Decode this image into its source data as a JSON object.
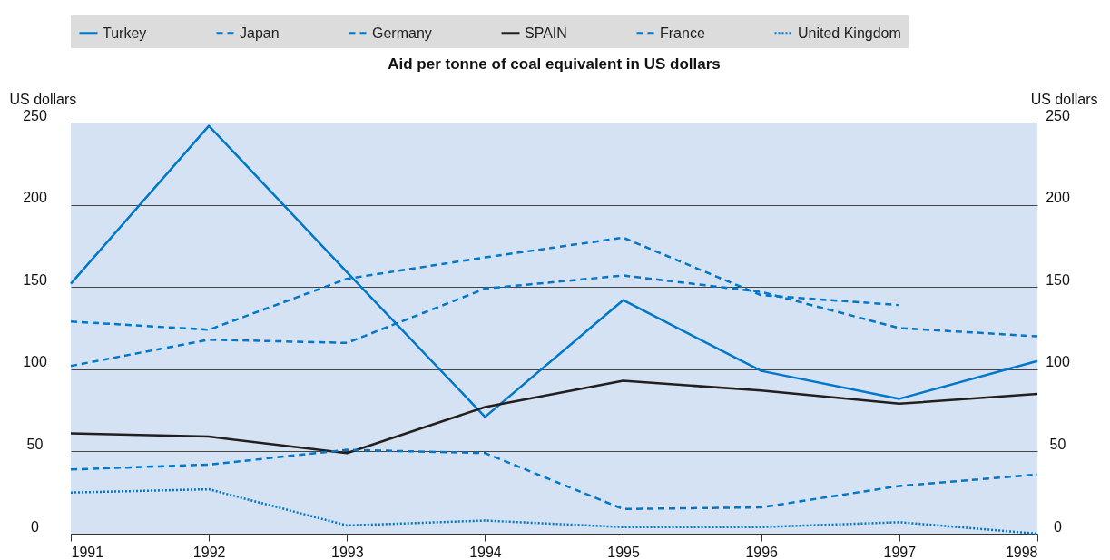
{
  "chart_data": {
    "type": "line",
    "title": "Aid per tonne of coal equivalent in US dollars",
    "ylabel": "US dollars",
    "y2label": "US dollars",
    "x": [
      1991,
      1992,
      1993,
      1994,
      1995,
      1996,
      1997,
      1998
    ],
    "xlim": [
      1991,
      1998
    ],
    "xticks": [
      1991,
      1992,
      1993,
      1994,
      1995,
      1996,
      1997,
      1998
    ],
    "ylim": [
      0,
      250
    ],
    "yticks": [
      0,
      50,
      100,
      150,
      200,
      250
    ],
    "y2lim": [
      0,
      250
    ],
    "y2ticks": [
      0,
      50,
      100,
      150,
      200,
      250
    ],
    "grid": "y",
    "legend": "top",
    "marker": "none",
    "series": [
      {
        "name": "Turkey",
        "color": "#0077c8",
        "line_style": "solid",
        "values": [
          152,
          248,
          159,
          71,
          142,
          99,
          82,
          105
        ]
      },
      {
        "name": "Japan",
        "color": "#0077c8",
        "line_style": "dashed",
        "values": [
          129,
          124,
          155,
          168,
          180,
          145,
          139,
          null
        ]
      },
      {
        "name": "Germany",
        "color": "#0077c8",
        "line_style": "dashed",
        "values": [
          102,
          118,
          116,
          149,
          157,
          147,
          125,
          120
        ]
      },
      {
        "name": "SPAIN",
        "color": "#231f20",
        "line_style": "solid",
        "values": [
          61,
          59,
          49,
          77,
          93,
          87,
          79,
          85
        ]
      },
      {
        "name": "France",
        "color": "#0077c8",
        "line_style": "dashed",
        "values": [
          39,
          42,
          51,
          49,
          15,
          16,
          29,
          36
        ]
      },
      {
        "name": "United Kingdom",
        "color": "#0077c8",
        "line_style": "dotted",
        "values": [
          25,
          27,
          5,
          8,
          4,
          4,
          7,
          0
        ]
      }
    ]
  }
}
